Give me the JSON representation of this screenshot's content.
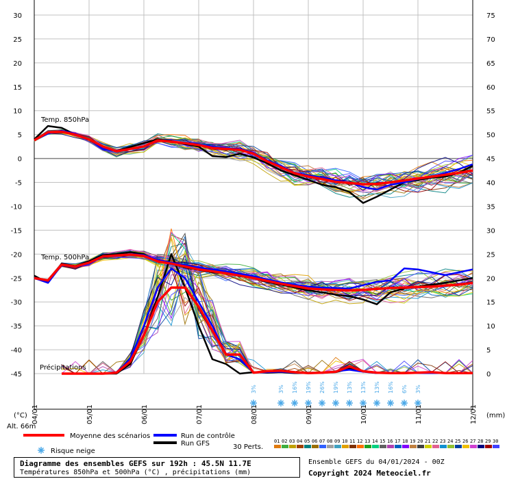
{
  "chart_data": {
    "type": "line",
    "title": "Diagramme des ensembles GEFS sur 192h : 45.5N 11.7E",
    "subtitle": "Températures 850hPa et 500hPa (°C) , précipitations (mm)",
    "left_axis": {
      "unit_label": "(°C)",
      "ylim": [
        -45,
        30
      ],
      "ticks": [
        30,
        25,
        20,
        15,
        10,
        5,
        0,
        -5,
        -10,
        -15,
        -20,
        -25,
        -30,
        -35,
        -40,
        -45
      ]
    },
    "right_axis": {
      "unit_label": "(mm)",
      "ylim": [
        0,
        75
      ],
      "ticks": [
        75,
        70,
        65,
        60,
        55,
        50,
        45,
        40,
        35,
        30,
        25,
        20,
        15,
        10,
        5,
        0
      ]
    },
    "x_ticks": [
      "04/01",
      "05/01",
      "06/01",
      "07/01",
      "08/01",
      "09/01",
      "10/01",
      "11/01",
      "12/01"
    ],
    "x_range_hours": [
      0,
      192
    ],
    "panel_labels": {
      "t850": "Temp. 850hPa",
      "t500": "Temp. 500hPa",
      "precip": "Précipitations"
    },
    "altitude": "Alt. 66m",
    "series": [
      {
        "name": "Moyenne des scénarios",
        "color": "#ff0000",
        "x": [
          0,
          6,
          12,
          18,
          24,
          30,
          36,
          42,
          48,
          54,
          60,
          66,
          72,
          78,
          84,
          90,
          96,
          102,
          108,
          114,
          120,
          126,
          132,
          138,
          144,
          150,
          156,
          162,
          168,
          174,
          180,
          186,
          192
        ],
        "t850": [
          3.8,
          5.5,
          5.6,
          5.0,
          4.0,
          2.5,
          1.5,
          2.0,
          2.5,
          3.8,
          3.5,
          3.2,
          2.8,
          2.2,
          2.0,
          1.8,
          1.0,
          -0.6,
          -1.8,
          -3.1,
          -3.8,
          -4.3,
          -4.9,
          -5.1,
          -5.4,
          -5.3,
          -5.0,
          -4.6,
          -4.2,
          -3.8,
          -3.4,
          -3.0,
          -2.5
        ],
        "t500": [
          -25,
          -25.5,
          -22.2,
          -22.6,
          -21.8,
          -20.5,
          -20.3,
          -20.1,
          -20.4,
          -21.5,
          -22.0,
          -22.6,
          -23.2,
          -23.6,
          -24.0,
          -24.5,
          -25.0,
          -25.6,
          -26.2,
          -26.7,
          -27.2,
          -27.4,
          -27.5,
          -27.6,
          -27.5,
          -27.3,
          -27.1,
          -27.0,
          -26.9,
          -26.8,
          -26.6,
          -26.4,
          -26.0
        ],
        "precip_mm": [
          null,
          null,
          0,
          0,
          0,
          0,
          0.2,
          2.5,
          8,
          15,
          18,
          18,
          14,
          9,
          4,
          4,
          0.2,
          0.5,
          0.6,
          0.3,
          0.1,
          0.2,
          0.4,
          1.5,
          0.5,
          0.2,
          0.1,
          0.1,
          0.2,
          0.3,
          0.1,
          0.1,
          0.1
        ]
      },
      {
        "name": "Run de contrôle",
        "color": "#0000ff",
        "x": [
          0,
          6,
          12,
          18,
          24,
          30,
          36,
          42,
          48,
          54,
          60,
          66,
          72,
          78,
          84,
          90,
          96,
          102,
          108,
          114,
          120,
          126,
          132,
          138,
          144,
          150,
          156,
          162,
          168,
          174,
          180,
          186,
          192
        ],
        "t850": [
          3.8,
          5.2,
          5.8,
          5.2,
          4.0,
          2.0,
          1.5,
          2.0,
          2.4,
          3.8,
          3.5,
          3.3,
          3.0,
          2.5,
          2.2,
          2.0,
          1.2,
          -0.4,
          -1.5,
          -3.0,
          -3.5,
          -4.0,
          -4.6,
          -5.0,
          -6.0,
          -6.5,
          -5.5,
          -5.0,
          -4.3,
          -3.8,
          -3.0,
          -2.2,
          -1.2
        ],
        "t500": [
          -25,
          -26,
          -22.3,
          -22.7,
          -22.0,
          -20.6,
          -20.3,
          -20.0,
          -20.2,
          -21.2,
          -21.8,
          -22.3,
          -22.8,
          -23.2,
          -23.6,
          -24.1,
          -24.6,
          -25.3,
          -25.9,
          -26.4,
          -26.8,
          -27.0,
          -27.1,
          -27.2,
          -26.5,
          -25.8,
          -25.5,
          -23.0,
          -23.2,
          -23.8,
          -24.4,
          -23.8,
          -23.2
        ],
        "precip_mm": [
          null,
          null,
          0,
          0,
          0,
          0,
          0.3,
          3,
          10,
          18,
          22,
          20,
          15,
          10,
          4,
          3,
          0.2,
          0.3,
          0.4,
          0.2,
          0.1,
          0.1,
          0.5,
          0.8,
          0.4,
          0.1,
          0.1,
          0.1,
          0.1,
          0.1,
          0.1,
          0.1,
          0.1
        ]
      },
      {
        "name": "Run GFS",
        "color": "#000000",
        "x": [
          0,
          6,
          12,
          18,
          24,
          30,
          36,
          42,
          48,
          54,
          60,
          66,
          72,
          78,
          84,
          90,
          96,
          102,
          108,
          114,
          120,
          126,
          132,
          138,
          144,
          150,
          156,
          162,
          168,
          174,
          180,
          186,
          192
        ],
        "t850": [
          4.0,
          6.8,
          6.4,
          5.0,
          4.0,
          2.0,
          1.6,
          2.4,
          3.2,
          4.0,
          3.6,
          3.0,
          2.5,
          0.5,
          0.3,
          1.0,
          0.2,
          -1.0,
          -2.5,
          -3.5,
          -4.5,
          -5.5,
          -6.0,
          -7.0,
          -9.3,
          -8.0,
          -6.5,
          -5.0,
          -4.5,
          -4.0,
          -3.8,
          -3.0,
          -1.5
        ],
        "t500": [
          -24.5,
          -26,
          -22,
          -22.5,
          -21.5,
          -20.2,
          -20.0,
          -19.6,
          -20.0,
          -21.5,
          -22.0,
          -22.8,
          -23.3,
          -23.8,
          -24.0,
          -24.6,
          -25.0,
          -25.8,
          -26.4,
          -27.0,
          -27.6,
          -28.0,
          -28.5,
          -28.8,
          -29.5,
          -30.5,
          -28.0,
          -27.2,
          -26.8,
          -26.4,
          -26.0,
          -25.5,
          -25.0
        ],
        "precip_mm": [
          null,
          null,
          0,
          0,
          0,
          0,
          0,
          2,
          8,
          16,
          25,
          18,
          10,
          3,
          2,
          0,
          0.3,
          0.2,
          0.3,
          0.1,
          0.1,
          0.2,
          0.3,
          1.0,
          0.5,
          0.1,
          0.1,
          0.1,
          0.1,
          0.1,
          0.1,
          0.1,
          0.1
        ]
      }
    ],
    "snow_risk": [
      {
        "hour": 96,
        "pct": "3%"
      },
      {
        "hour": 108,
        "pct": "3%"
      },
      {
        "hour": 114,
        "pct": "16%"
      },
      {
        "hour": 120,
        "pct": "19%"
      },
      {
        "hour": 126,
        "pct": "26%"
      },
      {
        "hour": 132,
        "pct": "19%"
      },
      {
        "hour": 138,
        "pct": "13%"
      },
      {
        "hour": 144,
        "pct": "13%"
      },
      {
        "hour": 150,
        "pct": "13%"
      },
      {
        "hour": 156,
        "pct": "16%"
      },
      {
        "hour": 162,
        "pct": "6%"
      },
      {
        "hour": 168,
        "pct": "3%"
      }
    ]
  },
  "legend": {
    "mean_label": "Moyenne des scénarios",
    "control_label": "Run de contrôle",
    "gfs_label": "Run GFS",
    "snow_label": "Risque neige",
    "perts_label": "30 Perts.",
    "perts": [
      {
        "num": "01",
        "color": "#e07b10"
      },
      {
        "num": "02",
        "color": "#3fae3f"
      },
      {
        "num": "03",
        "color": "#c0a000"
      },
      {
        "num": "04",
        "color": "#a04000"
      },
      {
        "num": "05",
        "color": "#008080"
      },
      {
        "num": "06",
        "color": "#9a6f00"
      },
      {
        "num": "07",
        "color": "#3060ff"
      },
      {
        "num": "08",
        "color": "#a0a0a0"
      },
      {
        "num": "09",
        "color": "#40a0c0"
      },
      {
        "num": "10",
        "color": "#e0a000"
      },
      {
        "num": "11",
        "color": "#803000"
      },
      {
        "num": "12",
        "color": "#ff7000"
      },
      {
        "num": "13",
        "color": "#20a020"
      },
      {
        "num": "14",
        "color": "#00d080"
      },
      {
        "num": "15",
        "color": "#606060"
      },
      {
        "num": "16",
        "color": "#b040b0"
      },
      {
        "num": "17",
        "color": "#0060c0"
      },
      {
        "num": "18",
        "color": "#8000ff"
      },
      {
        "num": "19",
        "color": "#c08040"
      },
      {
        "num": "20",
        "color": "#404040"
      },
      {
        "num": "21",
        "color": "#d0d000"
      },
      {
        "num": "22",
        "color": "#e06090"
      },
      {
        "num": "23",
        "color": "#1090d0"
      },
      {
        "num": "24",
        "color": "#90c030"
      },
      {
        "num": "25",
        "color": "#0040a0"
      },
      {
        "num": "26",
        "color": "#f0c000"
      },
      {
        "num": "27",
        "color": "#d040d0"
      },
      {
        "num": "28",
        "color": "#000080"
      },
      {
        "num": "29",
        "color": "#a00000"
      },
      {
        "num": "30",
        "color": "#4040ff"
      }
    ]
  },
  "footer": {
    "title": "Diagramme des ensembles GEFS sur 192h : 45.5N 11.7E",
    "subtitle": "Températures 850hPa et 500hPa (°C) , précipitations (mm)",
    "run_info": "Ensemble GEFS du 04/01/2024 - 00Z",
    "copyright": "Copyright 2024 Meteociel.fr"
  },
  "colors": {
    "mean": "#ff0000",
    "control": "#0000ff",
    "gfs": "#000000",
    "grid": "#c0c0c0",
    "snow": "#4aa8e8"
  }
}
